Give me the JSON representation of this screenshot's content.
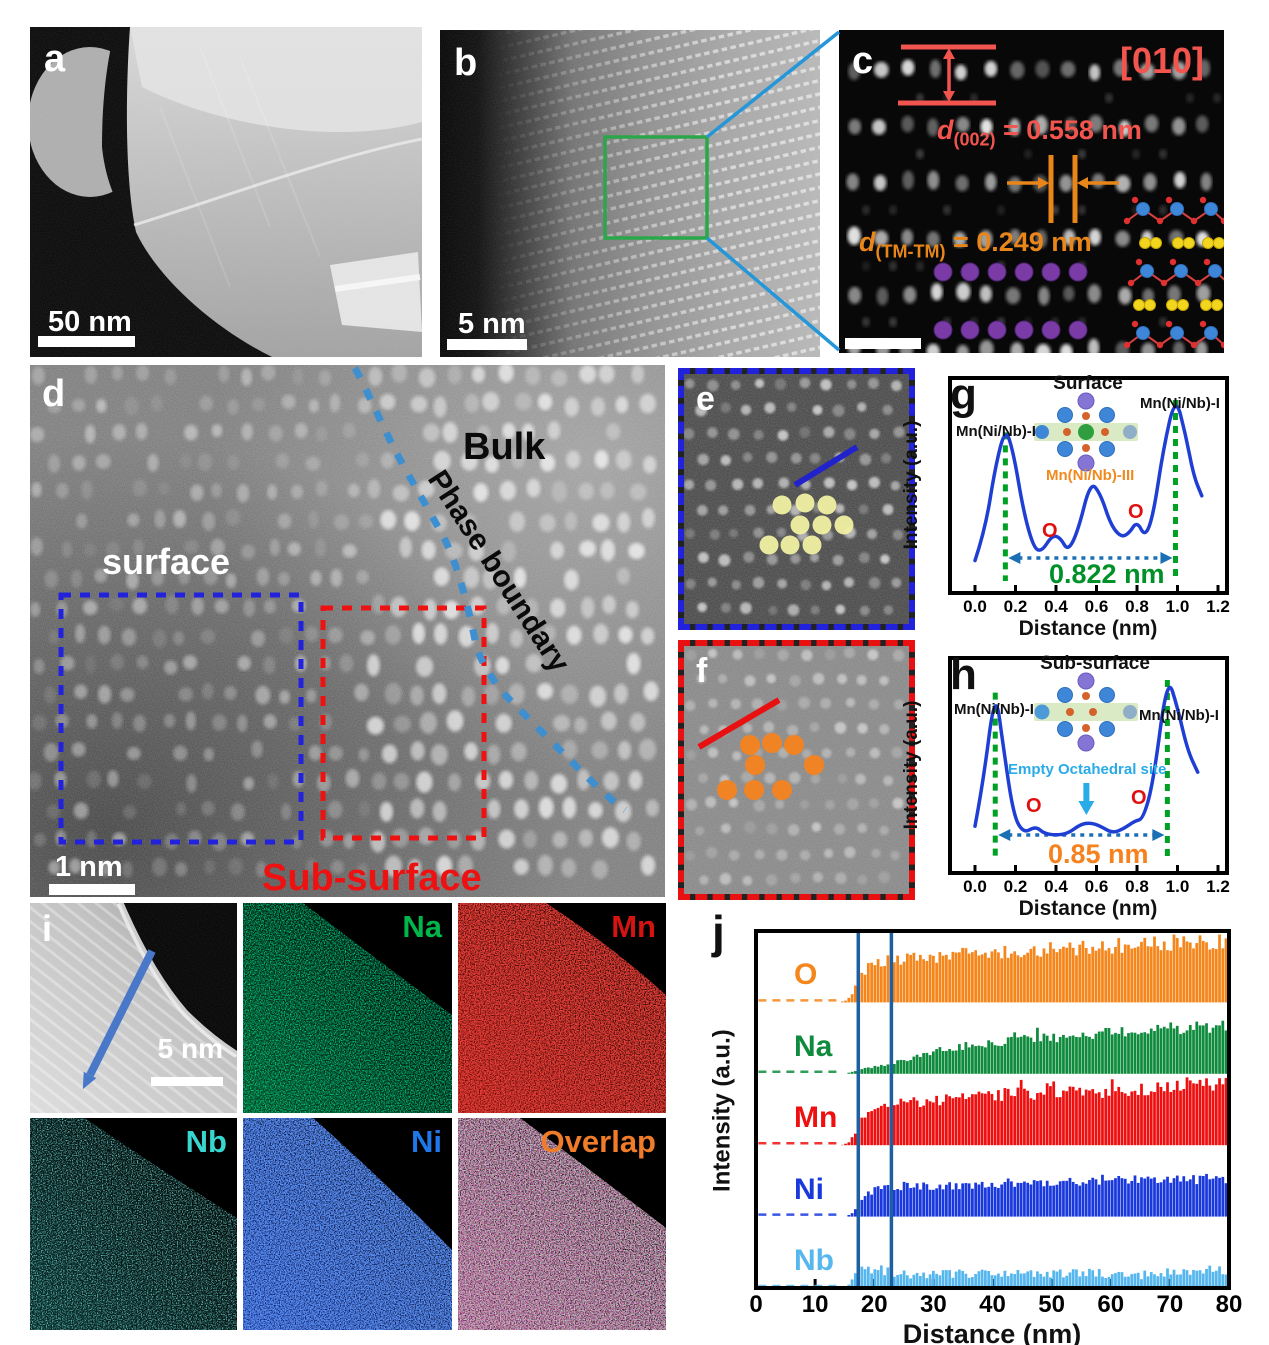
{
  "colors": {
    "annotation_red": "#F2544E",
    "annotation_orange": "#E8861A",
    "purple_dot": "#7B3BA6",
    "surface_box_blue": "#2222DD",
    "subsurface_box_red": "#EE1111",
    "phase_boundary_blue": "#3E8FD0",
    "green_box": "#2BA648",
    "connector_blue": "#2596D8",
    "curve_blue": "#1F3FD4",
    "peak_dash_green": "#00A024",
    "distance_arrow_blue": "#1B6FB5",
    "cyan_annotation": "#29ABE8",
    "distance_green": "#009028",
    "distance_orange": "#F5821E",
    "highlight_box_blue": "#1D5FA0",
    "yellow_dot": "#F0F0A2",
    "orange_dot": "#F5831E"
  },
  "panel_a": {
    "label": "a",
    "scalebar": "50 nm"
  },
  "panel_b": {
    "label": "b",
    "scalebar": "5 nm"
  },
  "panel_c": {
    "label": "c",
    "zone_axis": "[010]",
    "d002": {
      "symbol": "d",
      "sub": "(002)",
      "rest": " = 0.558 nm"
    },
    "dtm": {
      "symbol": "d",
      "sub": "(TM-TM)",
      "rest": " = 0.249 nm"
    }
  },
  "panel_d": {
    "label": "d",
    "surface": "surface",
    "bulk": "Bulk",
    "phase_boundary": "Phase boundary",
    "subsurface": "Sub-surface",
    "scalebar": "1 nm"
  },
  "panel_e": {
    "label": "e"
  },
  "panel_f": {
    "label": "f"
  },
  "panel_g": {
    "label": "g",
    "title": "Surface",
    "peak_left": "Mn(Ni/Nb)-I",
    "peak_right": "Mn(Ni/Nb)-I",
    "peak_mid": "Mn(Ni/Nb)-III",
    "o_marker": "O",
    "distance": "0.822 nm",
    "xlabel": "Distance (nm)",
    "ylabel": "Intensity (a.u.)"
  },
  "panel_h": {
    "label": "h",
    "title": "Sub-surface",
    "peak_left": "Mn(Ni/Nb)-I",
    "peak_right": "Mn(Ni/Nb)-I",
    "annotation": "Empty Octahedral site",
    "o_marker": "O",
    "distance": "0.85 nm",
    "xlabel": "Distance (nm)",
    "ylabel": "Intensity (a.u.)"
  },
  "panel_i": {
    "label": "i",
    "scalebar": "5 nm",
    "maps": [
      {
        "label": "Na",
        "color": "#00B64A"
      },
      {
        "label": "Mn",
        "color": "#D31410"
      },
      {
        "label": "Nb",
        "color": "#37D6CE"
      },
      {
        "label": "Ni",
        "color": "#1E78E8"
      },
      {
        "label": "Overlap",
        "color": "#F07B28"
      }
    ]
  },
  "panel_j": {
    "label": "j",
    "xlabel": "Distance (nm)",
    "ylabel": "Intensity (a.u.)"
  },
  "chart_data": [
    {
      "panel": "g",
      "type": "line",
      "title": "Surface",
      "xlabel": "Distance (nm)",
      "ylabel": "Intensity (a.u.)",
      "xlim": [
        0,
        1.2
      ],
      "xticks": [
        0,
        0.2,
        0.4,
        0.6,
        0.8,
        1.0,
        1.2
      ],
      "points": [
        [
          0,
          0.08
        ],
        [
          0.05,
          0.25
        ],
        [
          0.1,
          0.6
        ],
        [
          0.15,
          0.82
        ],
        [
          0.19,
          0.68
        ],
        [
          0.24,
          0.35
        ],
        [
          0.29,
          0.15
        ],
        [
          0.33,
          0.13
        ],
        [
          0.38,
          0.22
        ],
        [
          0.42,
          0.21
        ],
        [
          0.46,
          0.13
        ],
        [
          0.51,
          0.25
        ],
        [
          0.57,
          0.52
        ],
        [
          0.62,
          0.45
        ],
        [
          0.67,
          0.28
        ],
        [
          0.72,
          0.21
        ],
        [
          0.76,
          0.23
        ],
        [
          0.8,
          0.3
        ],
        [
          0.84,
          0.21
        ],
        [
          0.88,
          0.33
        ],
        [
          0.93,
          0.7
        ],
        [
          0.99,
          1.0
        ],
        [
          1.04,
          0.78
        ],
        [
          1.08,
          0.55
        ],
        [
          1.12,
          0.44
        ]
      ],
      "main_peaks_x": [
        0.15,
        0.99
      ],
      "main_peak_label": "Mn(Ni/Nb)-I",
      "secondary_peak_x": 0.57,
      "secondary_peak_label": "Mn(Ni/Nb)-III",
      "oxygen_marker_x": [
        0.4,
        0.8
      ],
      "peak_distance_nm": 0.822,
      "peak_distance_label": "0.822 nm"
    },
    {
      "panel": "h",
      "type": "line",
      "title": "Sub-surface",
      "xlabel": "Distance (nm)",
      "ylabel": "Intensity (a.u.)",
      "xlim": [
        0,
        1.2
      ],
      "xticks": [
        0,
        0.2,
        0.4,
        0.6,
        0.8,
        1.0,
        1.2
      ],
      "points": [
        [
          0,
          0.16
        ],
        [
          0.04,
          0.4
        ],
        [
          0.1,
          0.93
        ],
        [
          0.14,
          0.6
        ],
        [
          0.19,
          0.22
        ],
        [
          0.24,
          0.12
        ],
        [
          0.3,
          0.16
        ],
        [
          0.34,
          0.12
        ],
        [
          0.4,
          0.11
        ],
        [
          0.46,
          0.12
        ],
        [
          0.52,
          0.17
        ],
        [
          0.57,
          0.18
        ],
        [
          0.62,
          0.16
        ],
        [
          0.68,
          0.12
        ],
        [
          0.74,
          0.15
        ],
        [
          0.79,
          0.19
        ],
        [
          0.83,
          0.2
        ],
        [
          0.88,
          0.4
        ],
        [
          0.95,
          1.0
        ],
        [
          1.0,
          0.82
        ],
        [
          1.05,
          0.58
        ],
        [
          1.1,
          0.46
        ]
      ],
      "main_peaks_x": [
        0.1,
        0.95
      ],
      "main_peak_label": "Mn(Ni/Nb)-I",
      "annotation": "Empty Octahedral site",
      "annotation_x": 0.55,
      "oxygen_marker_x": [
        0.3,
        0.79
      ],
      "peak_distance_nm": 0.85,
      "peak_distance_label": "0.85 nm"
    },
    {
      "panel": "j",
      "type": "bar",
      "xlabel": "Distance (nm)",
      "ylabel": "Intensity (a.u.)",
      "xlim": [
        0,
        80
      ],
      "xticks": [
        0,
        10,
        20,
        30,
        40,
        50,
        60,
        70,
        80
      ],
      "bar_step_nm": 0.55,
      "highlight_region_nm": [
        17.3,
        22.9
      ],
      "series": [
        {
          "name": "O",
          "color": "#F5861B",
          "trend": [
            [
              0,
              0
            ],
            [
              14,
              0
            ],
            [
              15,
              0.02
            ],
            [
              16,
              0.08
            ],
            [
              17,
              0.25
            ],
            [
              18,
              0.42
            ],
            [
              19,
              0.52
            ],
            [
              20,
              0.56
            ],
            [
              22,
              0.6
            ],
            [
              25,
              0.63
            ],
            [
              30,
              0.66
            ],
            [
              35,
              0.7
            ],
            [
              40,
              0.73
            ],
            [
              45,
              0.76
            ],
            [
              50,
              0.78
            ],
            [
              55,
              0.8
            ],
            [
              60,
              0.82
            ],
            [
              65,
              0.84
            ],
            [
              70,
              0.86
            ],
            [
              75,
              0.88
            ],
            [
              80,
              0.9
            ]
          ]
        },
        {
          "name": "Na",
          "color": "#0F8B3D",
          "trend": [
            [
              0,
              0
            ],
            [
              15,
              0
            ],
            [
              16,
              0.02
            ],
            [
              17,
              0.05
            ],
            [
              18,
              0.07
            ],
            [
              20,
              0.1
            ],
            [
              22,
              0.13
            ],
            [
              25,
              0.2
            ],
            [
              28,
              0.27
            ],
            [
              30,
              0.32
            ],
            [
              33,
              0.38
            ],
            [
              36,
              0.42
            ],
            [
              40,
              0.45
            ],
            [
              45,
              0.5
            ],
            [
              50,
              0.53
            ],
            [
              55,
              0.56
            ],
            [
              60,
              0.6
            ],
            [
              65,
              0.63
            ],
            [
              70,
              0.66
            ],
            [
              75,
              0.68
            ],
            [
              80,
              0.7
            ]
          ]
        },
        {
          "name": "Mn",
          "color": "#EE1010",
          "trend": [
            [
              0,
              0
            ],
            [
              14,
              0
            ],
            [
              15,
              0.01
            ],
            [
              16,
              0.06
            ],
            [
              17,
              0.22
            ],
            [
              18,
              0.4
            ],
            [
              19,
              0.5
            ],
            [
              20,
              0.55
            ],
            [
              22,
              0.6
            ],
            [
              25,
              0.63
            ],
            [
              30,
              0.66
            ],
            [
              35,
              0.7
            ],
            [
              40,
              0.73
            ],
            [
              45,
              0.74
            ],
            [
              50,
              0.76
            ],
            [
              55,
              0.78
            ],
            [
              60,
              0.8
            ],
            [
              65,
              0.82
            ],
            [
              70,
              0.84
            ],
            [
              75,
              0.86
            ],
            [
              80,
              0.88
            ]
          ]
        },
        {
          "name": "Ni",
          "color": "#1A39DD",
          "trend": [
            [
              0,
              0
            ],
            [
              15,
              0
            ],
            [
              16,
              0.03
            ],
            [
              17,
              0.12
            ],
            [
              18,
              0.25
            ],
            [
              19,
              0.33
            ],
            [
              20,
              0.38
            ],
            [
              22,
              0.42
            ],
            [
              25,
              0.45
            ],
            [
              30,
              0.44
            ],
            [
              35,
              0.46
            ],
            [
              40,
              0.47
            ],
            [
              45,
              0.48
            ],
            [
              50,
              0.5
            ],
            [
              55,
              0.51
            ],
            [
              60,
              0.52
            ],
            [
              65,
              0.53
            ],
            [
              70,
              0.54
            ],
            [
              75,
              0.55
            ],
            [
              80,
              0.56
            ]
          ]
        },
        {
          "name": "Nb",
          "color": "#56B7EE",
          "trend": [
            [
              0,
              0
            ],
            [
              15,
              0
            ],
            [
              16,
              0.05
            ],
            [
              17,
              0.22
            ],
            [
              18,
              0.25
            ],
            [
              19,
              0.28
            ],
            [
              20,
              0.26
            ],
            [
              21,
              0.24
            ],
            [
              22,
              0.26
            ],
            [
              25,
              0.2
            ],
            [
              30,
              0.18
            ],
            [
              35,
              0.2
            ],
            [
              40,
              0.22
            ],
            [
              45,
              0.2
            ],
            [
              50,
              0.19
            ],
            [
              55,
              0.2
            ],
            [
              60,
              0.2
            ],
            [
              65,
              0.18
            ],
            [
              70,
              0.22
            ],
            [
              75,
              0.26
            ],
            [
              80,
              0.24
            ]
          ]
        }
      ]
    }
  ]
}
